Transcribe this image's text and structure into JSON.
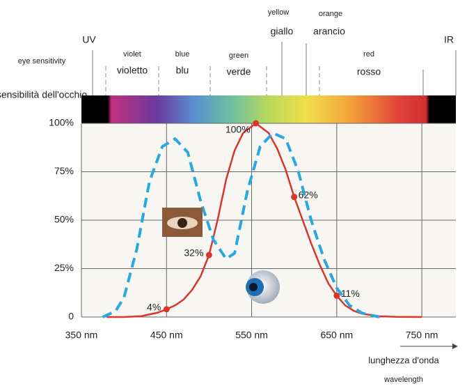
{
  "chart_data": {
    "type": "line",
    "header_labels": {
      "uv": "UV",
      "ir": "IR",
      "eye_en": "eye sensitivity",
      "eye_it": "sensibilità dell'occhio",
      "violet": "violet",
      "violetto": "violetto",
      "blue": "blue",
      "blu": "blu",
      "green": "green",
      "verde": "verde",
      "yellow": "yellow",
      "giallo": "giallo",
      "orange": "orange",
      "arancio": "arancio",
      "red": "red",
      "rosso": "rosso"
    },
    "x_label": "lunghezza d'onda",
    "x_label_en": "wavelength",
    "xlim": [
      350,
      790
    ],
    "ylim": [
      0,
      100
    ],
    "xticks": [
      {
        "value": 350,
        "label": "350 nm"
      },
      {
        "value": 450,
        "label": "450 nm"
      },
      {
        "value": 550,
        "label": "550 nm"
      },
      {
        "value": 650,
        "label": "650 nm"
      },
      {
        "value": 750,
        "label": "750 nm"
      }
    ],
    "yticks": [
      0,
      {
        "value": 25,
        "label": "25%"
      },
      {
        "value": 50,
        "label": "50%"
      },
      {
        "value": 75,
        "label": "75%"
      },
      {
        "value": 100,
        "label": "100%"
      }
    ],
    "grid": true,
    "series": [
      {
        "color": "#d9362b",
        "dashed": false,
        "x": [
          380,
          400,
          420,
          440,
          450,
          460,
          470,
          480,
          490,
          500,
          510,
          520,
          530,
          540,
          555,
          570,
          580,
          590,
          600,
          610,
          620,
          630,
          640,
          650,
          660,
          670,
          680,
          700,
          720,
          750
        ],
        "values": [
          0,
          0,
          0.4,
          2.3,
          4,
          6,
          9,
          14,
          21,
          32,
          50,
          71,
          86,
          95,
          100,
          95,
          87,
          76,
          62,
          50,
          38,
          27,
          17.5,
          11,
          6,
          3.2,
          1.7,
          0.4,
          0.1,
          0
        ],
        "value_labels": [
          null,
          null,
          null,
          null,
          "4%",
          null,
          null,
          null,
          null,
          "32%",
          null,
          null,
          null,
          null,
          "100%",
          null,
          null,
          null,
          "62%",
          null,
          null,
          null,
          null,
          "11%",
          null,
          null,
          null,
          null,
          null,
          null
        ]
      },
      {
        "color": "#29a8e0",
        "dashed": true,
        "x": [
          375,
          390,
          400,
          415,
          430,
          445,
          460,
          475,
          490,
          505,
          520,
          530,
          545,
          560,
          575,
          590,
          605,
          620,
          635,
          650,
          665,
          680,
          700
        ],
        "values": [
          0,
          3,
          10,
          35,
          70,
          88,
          92,
          85,
          60,
          40,
          30,
          33,
          65,
          88,
          95,
          92,
          75,
          50,
          30,
          15,
          6,
          2,
          0
        ]
      }
    ]
  }
}
